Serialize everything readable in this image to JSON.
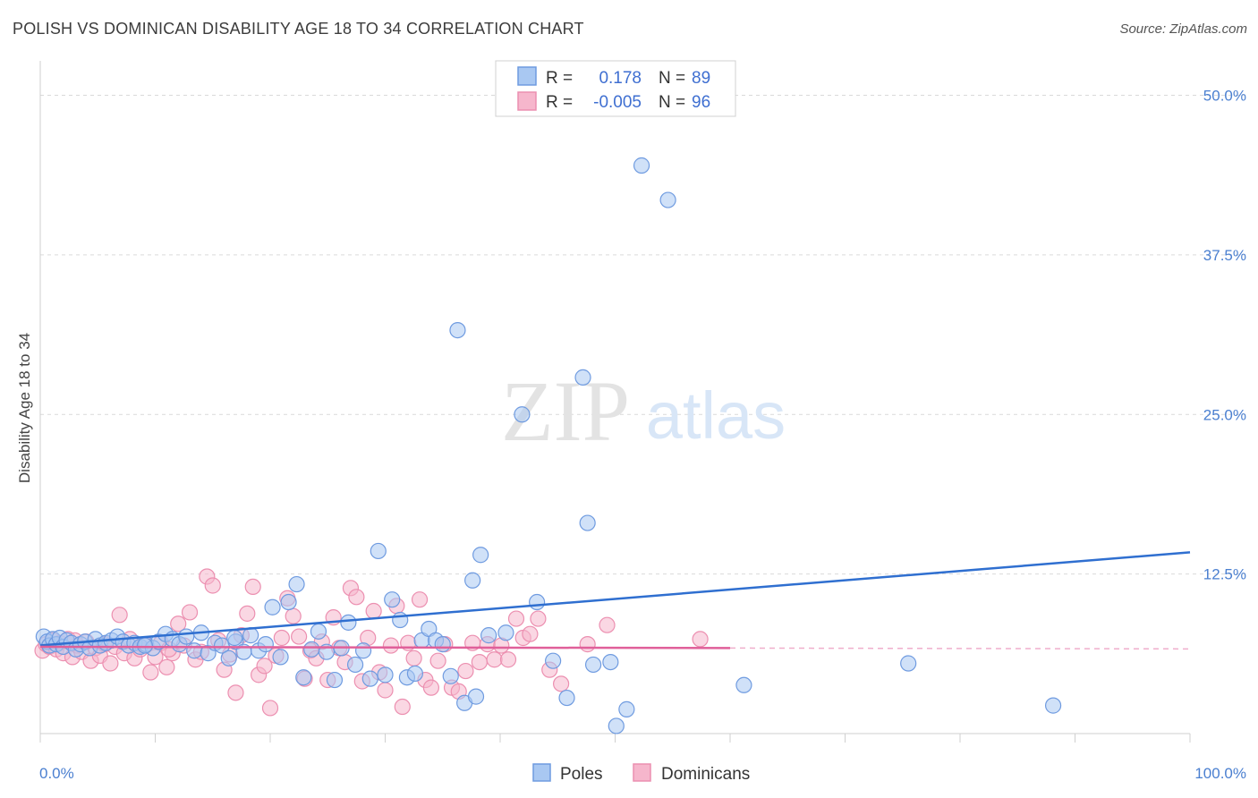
{
  "header": {
    "title": "POLISH VS DOMINICAN DISABILITY AGE 18 TO 34 CORRELATION CHART",
    "source": "Source: ZipAtlas.com"
  },
  "watermark": {
    "zip": "ZIP",
    "atlas": "atlas"
  },
  "colors": {
    "poles_fill": "#a9c8f2",
    "poles_stroke": "#6f9be0",
    "poles_line": "#2f6fd0",
    "dominicans_fill": "#f6b6cc",
    "dominicans_stroke": "#ec8fb0",
    "dominicans_line": "#e0609a",
    "grid": "#d9d9d9",
    "tick_label": "#4a7fd0"
  },
  "chart_data": {
    "type": "scatter",
    "title": "POLISH VS DOMINICAN DISABILITY AGE 18 TO 34 CORRELATION CHART",
    "xlabel": "",
    "ylabel": "Disability Age 18 to 34",
    "xlim": [
      0,
      100
    ],
    "ylim": [
      0,
      52
    ],
    "x_tick_labels": [
      {
        "value": 0,
        "label": "0.0%"
      },
      {
        "value": 100,
        "label": "100.0%"
      }
    ],
    "y_tick_labels": [
      {
        "value": 12.5,
        "label": "12.5%"
      },
      {
        "value": 25.0,
        "label": "25.0%"
      },
      {
        "value": 37.5,
        "label": "37.5%"
      },
      {
        "value": 50.0,
        "label": "50.0%"
      }
    ],
    "legend": {
      "placement": "top-center",
      "rows": [
        {
          "series": "Poles",
          "r_label": "R =",
          "r_value": "0.178",
          "n_label": "N =",
          "n_value": "89"
        },
        {
          "series": "Dominicans",
          "r_label": "R =",
          "r_value": "-0.005",
          "n_label": "N =",
          "n_value": "96"
        }
      ]
    },
    "series": [
      {
        "name": "Poles",
        "trend": {
          "x0": 0,
          "y0": 6.9,
          "x1": 100,
          "y1": 14.2
        },
        "points": [
          [
            0.3,
            7.6
          ],
          [
            0.6,
            7.2
          ],
          [
            0.8,
            6.9
          ],
          [
            1.1,
            7.4
          ],
          [
            1.4,
            7.0
          ],
          [
            1.7,
            7.5
          ],
          [
            2.0,
            6.8
          ],
          [
            2.3,
            7.3
          ],
          [
            2.7,
            7.1
          ],
          [
            3.1,
            6.6
          ],
          [
            3.5,
            7.0
          ],
          [
            3.9,
            7.2
          ],
          [
            4.3,
            6.7
          ],
          [
            4.8,
            7.4
          ],
          [
            5.2,
            6.9
          ],
          [
            5.7,
            7.1
          ],
          [
            6.2,
            7.3
          ],
          [
            6.7,
            7.6
          ],
          [
            7.2,
            7.2
          ],
          [
            7.7,
            6.9
          ],
          [
            8.2,
            7.1
          ],
          [
            8.7,
            6.8
          ],
          [
            9.2,
            7.0
          ],
          [
            9.8,
            6.7
          ],
          [
            10.3,
            7.2
          ],
          [
            10.9,
            7.8
          ],
          [
            11.5,
            7.4
          ],
          [
            12.1,
            7.0
          ],
          [
            12.7,
            7.6
          ],
          [
            13.4,
            6.5
          ],
          [
            14.0,
            7.9
          ],
          [
            14.6,
            6.3
          ],
          [
            15.2,
            7.1
          ],
          [
            15.8,
            6.9
          ],
          [
            16.4,
            5.9
          ],
          [
            17.0,
            7.2
          ],
          [
            17.7,
            6.4
          ],
          [
            18.3,
            7.7
          ],
          [
            19.0,
            6.5
          ],
          [
            19.6,
            7.0
          ],
          [
            20.2,
            9.9
          ],
          [
            20.9,
            6.0
          ],
          [
            21.6,
            10.3
          ],
          [
            22.3,
            11.7
          ],
          [
            22.9,
            4.4
          ],
          [
            23.6,
            6.6
          ],
          [
            24.2,
            8.0
          ],
          [
            24.9,
            6.4
          ],
          [
            25.6,
            4.2
          ],
          [
            26.2,
            6.7
          ],
          [
            26.8,
            8.7
          ],
          [
            27.4,
            5.4
          ],
          [
            28.1,
            6.5
          ],
          [
            28.7,
            4.3
          ],
          [
            29.4,
            14.3
          ],
          [
            30.0,
            4.6
          ],
          [
            30.6,
            10.5
          ],
          [
            31.3,
            8.9
          ],
          [
            31.9,
            4.4
          ],
          [
            32.6,
            4.7
          ],
          [
            33.2,
            7.3
          ],
          [
            33.8,
            8.2
          ],
          [
            34.4,
            7.3
          ],
          [
            35.0,
            7.0
          ],
          [
            35.7,
            4.5
          ],
          [
            36.3,
            31.6
          ],
          [
            36.9,
            2.4
          ],
          [
            37.6,
            12.0
          ],
          [
            38.3,
            14.0
          ],
          [
            39.0,
            7.7
          ],
          [
            37.9,
            2.9
          ],
          [
            40.5,
            7.9
          ],
          [
            41.9,
            25.0
          ],
          [
            43.2,
            10.3
          ],
          [
            44.6,
            5.7
          ],
          [
            45.8,
            2.8
          ],
          [
            47.2,
            27.9
          ],
          [
            47.6,
            16.5
          ],
          [
            48.1,
            5.4
          ],
          [
            49.6,
            5.6
          ],
          [
            50.1,
            0.6
          ],
          [
            51.0,
            1.9
          ],
          [
            52.3,
            44.5
          ],
          [
            54.6,
            41.8
          ],
          [
            61.2,
            3.8
          ],
          [
            75.5,
            5.5
          ],
          [
            88.1,
            2.2
          ],
          [
            9.1,
            6.9
          ],
          [
            16.9,
            7.5
          ]
        ]
      },
      {
        "name": "Dominicans",
        "trend": {
          "x0": 0,
          "y0": 6.8,
          "x1": 60,
          "y1": 6.7
        },
        "points": [
          [
            0.2,
            6.5
          ],
          [
            0.5,
            7.0
          ],
          [
            0.8,
            6.8
          ],
          [
            1.1,
            7.3
          ],
          [
            1.4,
            6.6
          ],
          [
            1.7,
            7.1
          ],
          [
            2.0,
            6.3
          ],
          [
            2.4,
            7.4
          ],
          [
            2.8,
            6.0
          ],
          [
            3.2,
            6.9
          ],
          [
            3.6,
            6.4
          ],
          [
            4.0,
            7.2
          ],
          [
            4.4,
            5.7
          ],
          [
            4.8,
            6.7
          ],
          [
            5.2,
            6.1
          ],
          [
            5.6,
            7.0
          ],
          [
            6.1,
            5.5
          ],
          [
            6.5,
            6.8
          ],
          [
            6.9,
            9.3
          ],
          [
            7.3,
            6.3
          ],
          [
            7.8,
            7.4
          ],
          [
            8.2,
            5.9
          ],
          [
            8.7,
            6.6
          ],
          [
            9.1,
            7.0
          ],
          [
            9.6,
            4.8
          ],
          [
            10.0,
            6.0
          ],
          [
            10.5,
            7.1
          ],
          [
            11.0,
            5.2
          ],
          [
            11.5,
            6.3
          ],
          [
            12.0,
            8.6
          ],
          [
            12.5,
            6.9
          ],
          [
            13.0,
            9.5
          ],
          [
            13.5,
            5.8
          ],
          [
            14.0,
            6.4
          ],
          [
            14.5,
            12.3
          ],
          [
            15.0,
            11.6
          ],
          [
            15.5,
            7.3
          ],
          [
            16.0,
            5.0
          ],
          [
            16.5,
            6.2
          ],
          [
            17.0,
            3.2
          ],
          [
            17.5,
            7.7
          ],
          [
            18.0,
            9.4
          ],
          [
            18.5,
            11.5
          ],
          [
            19.0,
            4.6
          ],
          [
            19.5,
            5.3
          ],
          [
            20.0,
            2.0
          ],
          [
            20.5,
            6.1
          ],
          [
            21.0,
            7.5
          ],
          [
            21.5,
            10.6
          ],
          [
            22.0,
            9.2
          ],
          [
            22.5,
            7.6
          ],
          [
            23.0,
            4.3
          ],
          [
            23.5,
            6.5
          ],
          [
            24.0,
            5.9
          ],
          [
            24.5,
            7.2
          ],
          [
            25.0,
            4.2
          ],
          [
            25.5,
            9.1
          ],
          [
            26.0,
            6.7
          ],
          [
            26.5,
            5.6
          ],
          [
            27.0,
            11.4
          ],
          [
            27.5,
            10.7
          ],
          [
            28.0,
            4.1
          ],
          [
            28.5,
            7.5
          ],
          [
            29.0,
            9.6
          ],
          [
            29.5,
            4.8
          ],
          [
            30.0,
            3.4
          ],
          [
            30.5,
            6.9
          ],
          [
            31.0,
            10.0
          ],
          [
            31.5,
            2.1
          ],
          [
            32.0,
            7.1
          ],
          [
            32.5,
            5.9
          ],
          [
            33.0,
            10.5
          ],
          [
            33.5,
            4.2
          ],
          [
            34.0,
            3.6
          ],
          [
            34.6,
            5.7
          ],
          [
            35.2,
            7.0
          ],
          [
            35.8,
            3.6
          ],
          [
            36.4,
            3.3
          ],
          [
            37.0,
            4.9
          ],
          [
            37.6,
            7.1
          ],
          [
            38.2,
            5.6
          ],
          [
            38.9,
            7.0
          ],
          [
            39.5,
            5.8
          ],
          [
            40.1,
            6.9
          ],
          [
            40.7,
            5.8
          ],
          [
            41.4,
            9.0
          ],
          [
            42.0,
            7.5
          ],
          [
            42.6,
            7.8
          ],
          [
            43.3,
            9.0
          ],
          [
            44.3,
            5.0
          ],
          [
            45.3,
            3.9
          ],
          [
            47.6,
            7.0
          ],
          [
            49.3,
            8.5
          ],
          [
            57.4,
            7.4
          ],
          [
            3.0,
            7.3
          ],
          [
            11.2,
            6.6
          ]
        ]
      }
    ]
  },
  "bottom_legend": {
    "items": [
      {
        "label": "Poles"
      },
      {
        "label": "Dominicans"
      }
    ]
  }
}
